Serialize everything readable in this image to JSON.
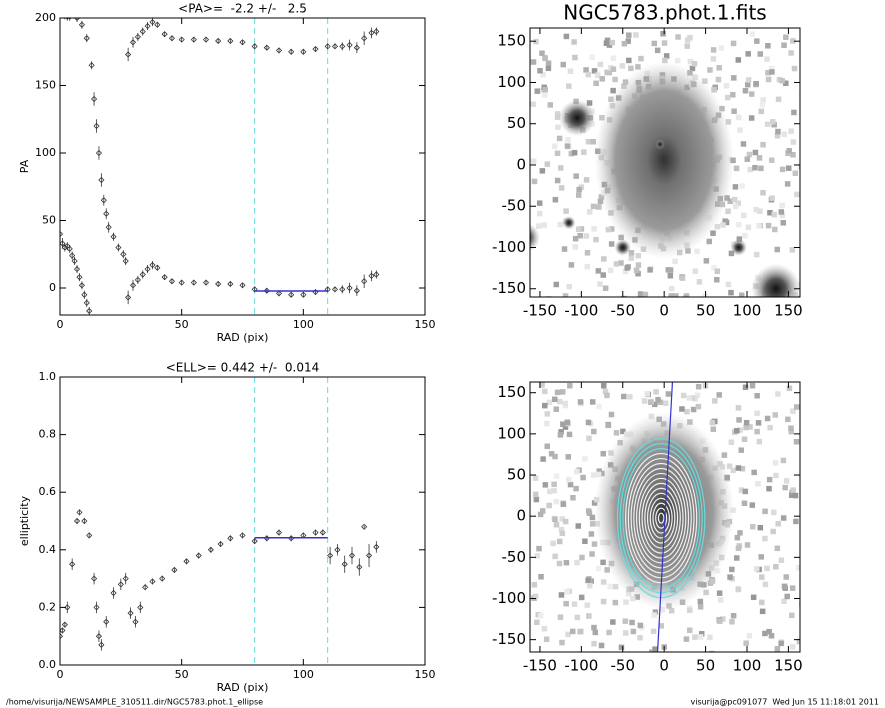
{
  "chart_data": [
    {
      "type": "scatter",
      "title": "<PA>=  -2.2 +/-   2.5",
      "x_label": "RAD (pix)",
      "y_label": "PA",
      "xlim": [
        0,
        150
      ],
      "xticks": [
        0,
        50,
        100,
        150
      ],
      "ylim": [
        -20,
        200
      ],
      "yticks": [
        0,
        50,
        100,
        150,
        200
      ],
      "series": [
        {
          "color": "#333333",
          "x": [
            0,
            1,
            2,
            3,
            4,
            5,
            6,
            7,
            8,
            9,
            10,
            11,
            12,
            28,
            30,
            32,
            34,
            36,
            38,
            40,
            43,
            46,
            50,
            55,
            60,
            65,
            70,
            75,
            80,
            85,
            90,
            95,
            100,
            105,
            110,
            113,
            116,
            119,
            122,
            125,
            128,
            130
          ],
          "values": [
            40,
            33,
            30,
            31,
            29,
            24,
            20,
            14,
            8,
            2,
            -5,
            -11,
            -17,
            -7,
            2,
            6,
            10,
            14,
            17,
            15,
            8,
            5,
            4,
            4,
            4,
            3,
            3,
            2,
            -1,
            -2,
            -4,
            -5,
            -5,
            -3,
            -1,
            -1,
            -1,
            0,
            -2,
            5,
            9,
            10
          ],
          "errors": [
            8,
            4,
            3,
            3,
            3,
            3,
            3,
            3,
            3,
            3,
            3,
            3,
            3,
            5,
            4,
            3,
            3,
            3,
            3,
            2,
            2,
            2,
            2,
            2,
            2,
            2,
            2,
            2,
            2,
            2,
            2,
            2,
            2,
            2,
            2,
            2,
            3,
            4,
            4,
            5,
            4,
            3
          ]
        },
        {
          "color": "#333333",
          "x": [
            0,
            1,
            2,
            3,
            4,
            5,
            7,
            9,
            11,
            13,
            14,
            15,
            16,
            17,
            18,
            19,
            20,
            22,
            24,
            26,
            27,
            28,
            30,
            32,
            34,
            36,
            38,
            40,
            43,
            46,
            50,
            55,
            60,
            65,
            70,
            75,
            80,
            85,
            90,
            95,
            100,
            105,
            110,
            113,
            116,
            119,
            122,
            125,
            128,
            130
          ],
          "values": [
            205,
            203,
            202,
            201,
            201,
            205,
            200,
            195,
            185,
            165,
            140,
            120,
            100,
            80,
            65,
            55,
            45,
            38,
            30,
            25,
            20,
            173,
            182,
            186,
            190,
            194,
            197,
            195,
            188,
            185,
            184,
            184,
            184,
            183,
            183,
            182,
            179,
            178,
            176,
            175,
            175,
            177,
            179,
            179,
            179,
            180,
            178,
            185,
            189,
            190
          ],
          "errors": [
            4,
            3,
            3,
            3,
            3,
            3,
            3,
            3,
            3,
            3,
            5,
            5,
            5,
            5,
            4,
            4,
            4,
            3,
            3,
            3,
            3,
            5,
            4,
            3,
            3,
            3,
            3,
            2,
            2,
            2,
            2,
            2,
            2,
            2,
            2,
            2,
            2,
            2,
            2,
            2,
            2,
            2,
            2,
            2,
            3,
            4,
            4,
            5,
            4,
            3
          ]
        }
      ],
      "fit": {
        "x": [
          80,
          110
        ],
        "value": -2.2,
        "color": "#3333cc"
      },
      "vlines": {
        "values": [
          80,
          110
        ],
        "color": "#66dddd"
      }
    },
    {
      "type": "scatter",
      "title": "<ELL>= 0.442 +/-  0.014",
      "x_label": "RAD (pix)",
      "y_label": "ellipticity",
      "xlim": [
        0,
        150
      ],
      "xticks": [
        0,
        50,
        100,
        150
      ],
      "ylim": [
        0,
        1
      ],
      "yticks": [
        {
          "value": 0,
          "label": "0.0"
        },
        0.2,
        0.4,
        0.6,
        0.8,
        {
          "value": 1,
          "label": "1.0"
        }
      ],
      "series": [
        {
          "color": "#333333",
          "x": [
            0,
            1,
            2,
            3,
            5,
            7,
            8,
            10,
            12,
            14,
            15,
            16,
            17,
            19,
            22,
            25,
            27,
            29,
            31,
            33,
            35,
            38,
            42,
            47,
            52,
            57,
            62,
            66,
            70,
            75,
            80,
            85,
            90,
            95,
            100,
            105,
            108,
            111,
            114,
            117,
            120,
            123,
            125,
            127,
            130
          ],
          "values": [
            0.1,
            0.12,
            0.14,
            0.2,
            0.35,
            0.5,
            0.53,
            0.5,
            0.45,
            0.3,
            0.2,
            0.1,
            0.07,
            0.15,
            0.25,
            0.28,
            0.3,
            0.18,
            0.15,
            0.2,
            0.27,
            0.29,
            0.3,
            0.33,
            0.36,
            0.38,
            0.4,
            0.42,
            0.44,
            0.45,
            0.43,
            0.44,
            0.46,
            0.44,
            0.45,
            0.46,
            0.46,
            0.38,
            0.4,
            0.35,
            0.38,
            0.34,
            0.48,
            0.38,
            0.41
          ],
          "errors": [
            0.02,
            0.01,
            0.01,
            0.02,
            0.02,
            0.01,
            0.01,
            0.01,
            0.01,
            0.02,
            0.02,
            0.02,
            0.02,
            0.02,
            0.02,
            0.02,
            0.02,
            0.02,
            0.02,
            0.02,
            0.01,
            0.01,
            0.01,
            0.01,
            0.01,
            0.01,
            0.01,
            0.01,
            0.01,
            0.01,
            0.01,
            0.01,
            0.01,
            0.01,
            0.01,
            0.01,
            0.01,
            0.03,
            0.02,
            0.03,
            0.03,
            0.03,
            0.005,
            0.04,
            0.02
          ]
        }
      ],
      "fit": {
        "x": [
          80,
          110
        ],
        "value": 0.442,
        "color": "#3333cc"
      },
      "vlines": {
        "values": [
          80,
          110
        ],
        "color": "#66dddd"
      }
    },
    {
      "type": "image",
      "title": "NGC5783.phot.1.fits",
      "xlim": [
        -162,
        164
      ],
      "xticks": [
        -150,
        -100,
        -50,
        0,
        50,
        100,
        150
      ],
      "ylim": [
        -160,
        166
      ],
      "yticks": [
        -150,
        -100,
        -50,
        0,
        50,
        100,
        150
      ],
      "contours": false
    },
    {
      "type": "image",
      "xlim": [
        -162,
        164
      ],
      "xticks": [
        -150,
        -100,
        -50,
        0,
        50,
        100,
        150
      ],
      "ylim": [
        -165,
        163
      ],
      "yticks": [
        -150,
        -100,
        -50,
        0,
        50,
        100,
        150
      ],
      "contours": true
    }
  ],
  "footer": {
    "left": "/home/visurija/NEWSAMPLE_310511.dir/NGC5783.phot.1_ellipse",
    "right": "visurija@pc091077  Wed Jun 15 11:18:01 2011"
  }
}
